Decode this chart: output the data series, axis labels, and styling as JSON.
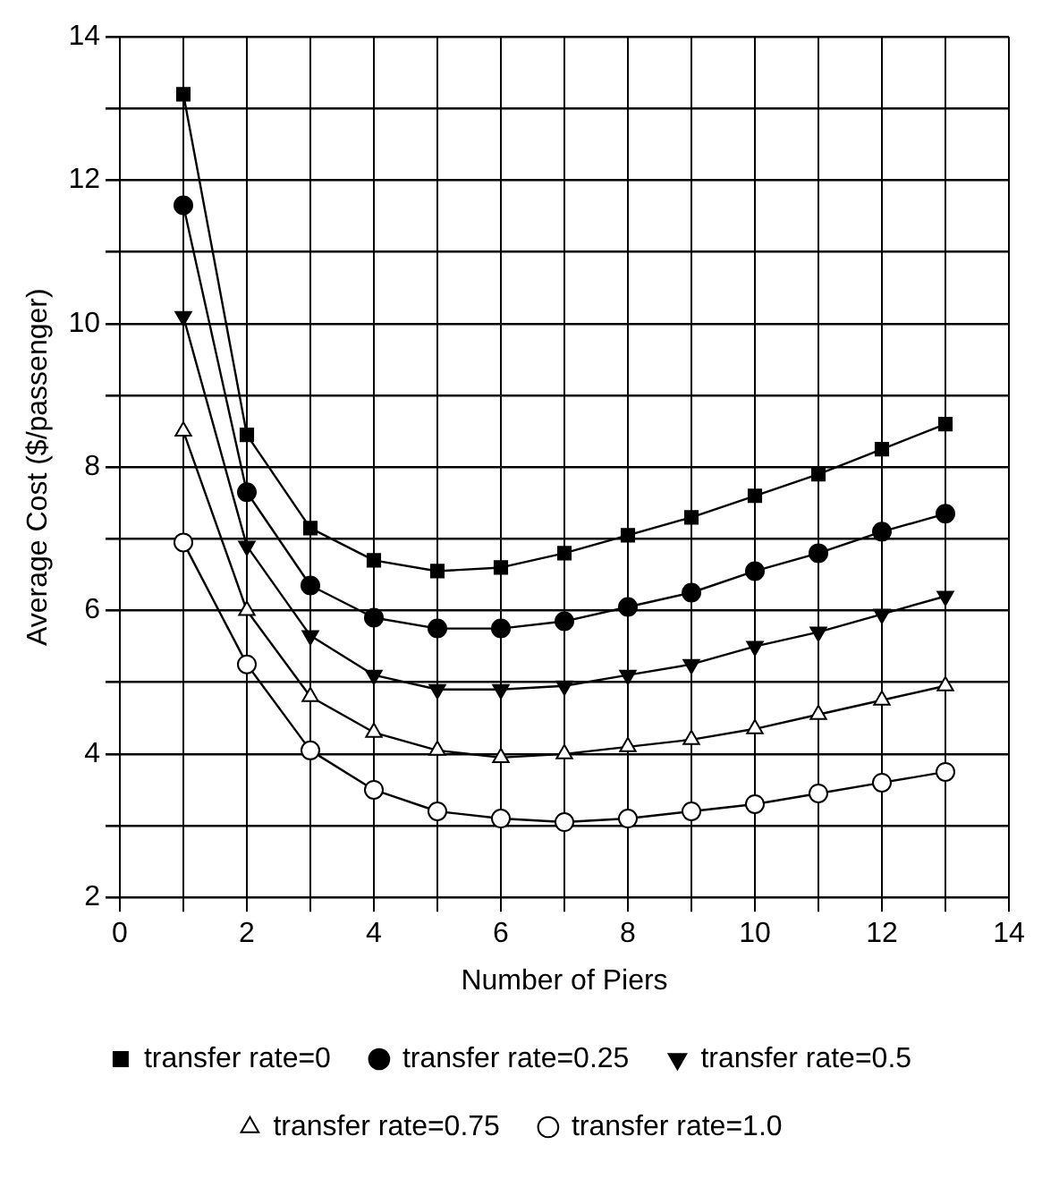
{
  "chart_data": {
    "type": "line",
    "xlabel": "Number of Piers",
    "ylabel": "Average Cost ($/passenger)",
    "x": [
      1,
      2,
      3,
      4,
      5,
      6,
      7,
      8,
      9,
      10,
      11,
      12,
      13
    ],
    "xlim": [
      0,
      14
    ],
    "xticks": [
      0,
      {
        "value": 1,
        "label": null
      },
      2,
      {
        "value": 3,
        "label": null
      },
      4,
      {
        "value": 5,
        "label": null
      },
      6,
      {
        "value": 7,
        "label": null
      },
      8,
      {
        "value": 9,
        "label": null
      },
      10,
      {
        "value": 11,
        "label": null
      },
      12,
      {
        "value": 13,
        "label": null
      },
      14
    ],
    "ylim": [
      2,
      14
    ],
    "yticks": [
      2,
      {
        "value": 3,
        "label": null
      },
      4,
      {
        "value": 5,
        "label": null
      },
      6,
      {
        "value": 7,
        "label": null
      },
      8,
      {
        "value": 9,
        "label": null
      },
      10,
      {
        "value": 11,
        "label": null
      },
      12,
      {
        "value": 13,
        "label": null
      },
      14
    ],
    "grid": true,
    "legend": "bottom",
    "line_style": "solid",
    "series": [
      {
        "name": "transfer rate=0",
        "color": "#000000",
        "marker": "square",
        "values": [
          13.2,
          8.45,
          7.15,
          6.7,
          6.55,
          6.6,
          6.8,
          7.05,
          7.3,
          7.6,
          7.9,
          8.25,
          8.6
        ]
      },
      {
        "name": "transfer rate=0.25",
        "color": "#000000",
        "marker": "circle",
        "values": [
          11.65,
          7.65,
          6.35,
          5.9,
          5.75,
          5.75,
          5.85,
          6.05,
          6.25,
          6.55,
          6.8,
          7.1,
          7.35
        ]
      },
      {
        "name": "transfer rate=0.5",
        "color": "#000000",
        "marker": "triangle",
        "values": [
          10.1,
          6.9,
          5.65,
          5.1,
          4.9,
          4.9,
          4.95,
          5.1,
          5.25,
          5.5,
          5.7,
          5.95,
          6.2
        ]
      },
      {
        "name": "transfer rate=0.75",
        "color": "#000000",
        "marker": "triangle",
        "values": [
          8.5,
          6.0,
          4.8,
          4.3,
          4.05,
          3.95,
          4.0,
          4.1,
          4.2,
          4.35,
          4.55,
          4.75,
          4.95
        ]
      },
      {
        "name": "transfer rate=1.0",
        "color": "#000000",
        "marker": "circle",
        "values": [
          6.95,
          5.25,
          4.05,
          3.5,
          3.2,
          3.1,
          3.05,
          3.1,
          3.2,
          3.3,
          3.45,
          3.6,
          3.75
        ]
      }
    ]
  }
}
